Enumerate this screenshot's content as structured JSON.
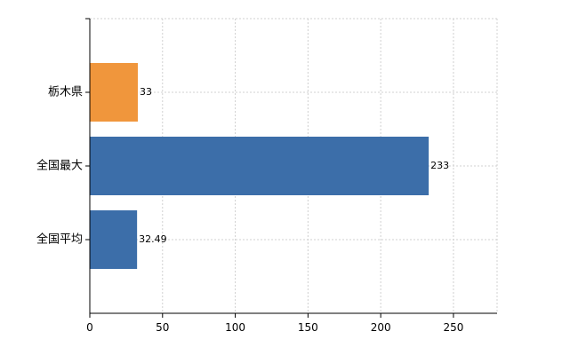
{
  "chart_data": {
    "type": "bar",
    "orientation": "horizontal",
    "categories": [
      "栃木県",
      "全国最大",
      "全国平均"
    ],
    "values": [
      33,
      233,
      32.49
    ],
    "value_labels": [
      "33",
      "233",
      "32.49"
    ],
    "bar_colors": [
      "#f0963c",
      "#3c6ea9",
      "#3c6ea9"
    ],
    "xlim": [
      0,
      280
    ],
    "xticks": [
      0,
      50,
      100,
      150,
      200,
      250
    ],
    "xtick_labels": [
      "0",
      "50",
      "100",
      "150",
      "200",
      "250"
    ],
    "grid": true,
    "title": "",
    "xlabel": "",
    "ylabel": ""
  }
}
